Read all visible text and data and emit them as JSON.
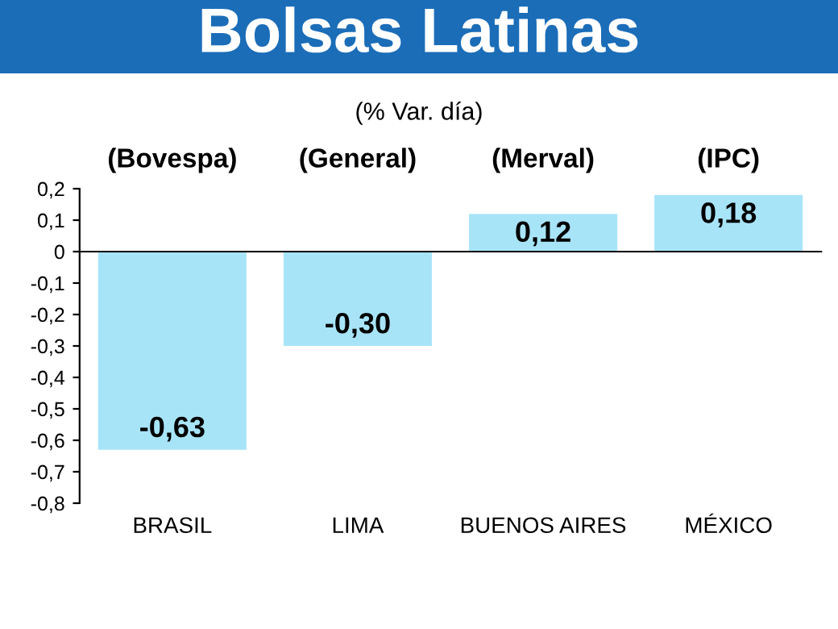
{
  "chart_data": {
    "type": "bar",
    "title": "Bolsas Latinas",
    "subtitle": "(% Var. día)",
    "categories": [
      "BRASIL",
      "LIMA",
      "BUENOS AIRES",
      "MÉXICO"
    ],
    "values": [
      -0.63,
      -0.3,
      0.12,
      0.18
    ],
    "value_labels": [
      "-0,63",
      "-0,30",
      "0,12",
      "0,18"
    ],
    "color": "#a8e4f8",
    "annotations": [
      "(Bovespa)",
      "(General)",
      "(Merval)",
      "(IPC)"
    ],
    "ylim": [
      -0.8,
      0.2
    ],
    "yticks": [
      {
        "value": -0.8,
        "label": "-0,8"
      },
      {
        "value": -0.7,
        "label": "-0,7"
      },
      {
        "value": -0.6,
        "label": "-0,6"
      },
      {
        "value": -0.5,
        "label": "-0,5"
      },
      {
        "value": -0.4,
        "label": "-0,4"
      },
      {
        "value": -0.3,
        "label": "-0,3"
      },
      {
        "value": -0.2,
        "label": "-0,2"
      },
      {
        "value": -0.1,
        "label": "-0,1"
      },
      0,
      {
        "value": 0.1,
        "label": "0,1"
      },
      {
        "value": 0.2,
        "label": "0,2"
      }
    ],
    "legend": false
  }
}
